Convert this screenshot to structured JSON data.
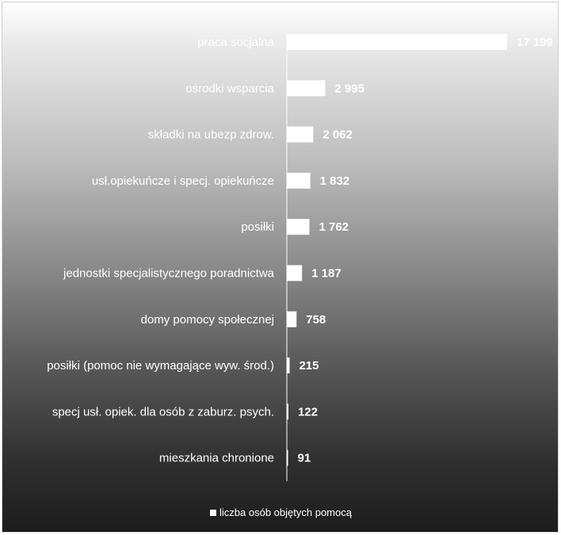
{
  "chart_data": {
    "type": "bar",
    "orientation": "horizontal",
    "categories": [
      "praca socjalna",
      "ośrodki wsparcia",
      "składki na ubezp zdrow.",
      "usł.opiekuńcze i specj. opiekuńcze",
      "posiłki",
      "jednostki specjalistycznego poradnictwa",
      "domy pomocy społecznej",
      "posiłki (pomoc nie wymagające wyw. środ.)",
      "specj usł. opiek. dla osób z zaburz. psych.",
      "mieszkania chronione"
    ],
    "series": [
      {
        "name": "liczba osób objętych pomocą",
        "values": [
          17199,
          2995,
          2062,
          1832,
          1762,
          1187,
          758,
          215,
          122,
          91
        ],
        "labels": [
          "17 199",
          "2 995",
          "2 062",
          "1 832",
          "1 762",
          "1 187",
          "758",
          "215",
          "122",
          "91"
        ]
      }
    ],
    "xlim": [
      0,
      17199
    ],
    "grid": false,
    "legend": "bottom",
    "colors": {
      "bar": "#ffffff",
      "text": "#ffffff"
    }
  }
}
